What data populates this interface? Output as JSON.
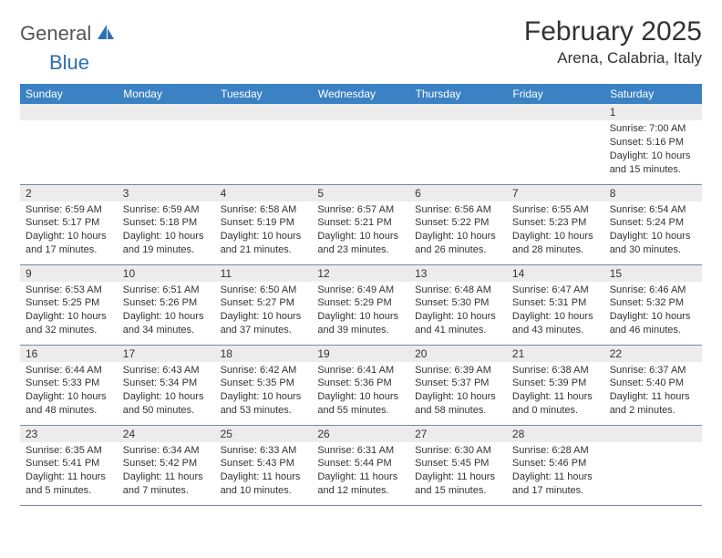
{
  "brand": {
    "general": "General",
    "blue": "Blue"
  },
  "title": "February 2025",
  "location": "Arena, Calabria, Italy",
  "colors": {
    "header_bg": "#3b82c4",
    "header_text": "#ffffff",
    "daynum_bg": "#ececec",
    "row_border": "#6a8db0",
    "text": "#333333",
    "logo_gray": "#555555",
    "logo_blue": "#2c6fb5"
  },
  "weekdays": [
    "Sunday",
    "Monday",
    "Tuesday",
    "Wednesday",
    "Thursday",
    "Friday",
    "Saturday"
  ],
  "weeks": [
    [
      {
        "n": "",
        "sr": "",
        "ss": "",
        "dl": ""
      },
      {
        "n": "",
        "sr": "",
        "ss": "",
        "dl": ""
      },
      {
        "n": "",
        "sr": "",
        "ss": "",
        "dl": ""
      },
      {
        "n": "",
        "sr": "",
        "ss": "",
        "dl": ""
      },
      {
        "n": "",
        "sr": "",
        "ss": "",
        "dl": ""
      },
      {
        "n": "",
        "sr": "",
        "ss": "",
        "dl": ""
      },
      {
        "n": "1",
        "sr": "Sunrise: 7:00 AM",
        "ss": "Sunset: 5:16 PM",
        "dl": "Daylight: 10 hours and 15 minutes."
      }
    ],
    [
      {
        "n": "2",
        "sr": "Sunrise: 6:59 AM",
        "ss": "Sunset: 5:17 PM",
        "dl": "Daylight: 10 hours and 17 minutes."
      },
      {
        "n": "3",
        "sr": "Sunrise: 6:59 AM",
        "ss": "Sunset: 5:18 PM",
        "dl": "Daylight: 10 hours and 19 minutes."
      },
      {
        "n": "4",
        "sr": "Sunrise: 6:58 AM",
        "ss": "Sunset: 5:19 PM",
        "dl": "Daylight: 10 hours and 21 minutes."
      },
      {
        "n": "5",
        "sr": "Sunrise: 6:57 AM",
        "ss": "Sunset: 5:21 PM",
        "dl": "Daylight: 10 hours and 23 minutes."
      },
      {
        "n": "6",
        "sr": "Sunrise: 6:56 AM",
        "ss": "Sunset: 5:22 PM",
        "dl": "Daylight: 10 hours and 26 minutes."
      },
      {
        "n": "7",
        "sr": "Sunrise: 6:55 AM",
        "ss": "Sunset: 5:23 PM",
        "dl": "Daylight: 10 hours and 28 minutes."
      },
      {
        "n": "8",
        "sr": "Sunrise: 6:54 AM",
        "ss": "Sunset: 5:24 PM",
        "dl": "Daylight: 10 hours and 30 minutes."
      }
    ],
    [
      {
        "n": "9",
        "sr": "Sunrise: 6:53 AM",
        "ss": "Sunset: 5:25 PM",
        "dl": "Daylight: 10 hours and 32 minutes."
      },
      {
        "n": "10",
        "sr": "Sunrise: 6:51 AM",
        "ss": "Sunset: 5:26 PM",
        "dl": "Daylight: 10 hours and 34 minutes."
      },
      {
        "n": "11",
        "sr": "Sunrise: 6:50 AM",
        "ss": "Sunset: 5:27 PM",
        "dl": "Daylight: 10 hours and 37 minutes."
      },
      {
        "n": "12",
        "sr": "Sunrise: 6:49 AM",
        "ss": "Sunset: 5:29 PM",
        "dl": "Daylight: 10 hours and 39 minutes."
      },
      {
        "n": "13",
        "sr": "Sunrise: 6:48 AM",
        "ss": "Sunset: 5:30 PM",
        "dl": "Daylight: 10 hours and 41 minutes."
      },
      {
        "n": "14",
        "sr": "Sunrise: 6:47 AM",
        "ss": "Sunset: 5:31 PM",
        "dl": "Daylight: 10 hours and 43 minutes."
      },
      {
        "n": "15",
        "sr": "Sunrise: 6:46 AM",
        "ss": "Sunset: 5:32 PM",
        "dl": "Daylight: 10 hours and 46 minutes."
      }
    ],
    [
      {
        "n": "16",
        "sr": "Sunrise: 6:44 AM",
        "ss": "Sunset: 5:33 PM",
        "dl": "Daylight: 10 hours and 48 minutes."
      },
      {
        "n": "17",
        "sr": "Sunrise: 6:43 AM",
        "ss": "Sunset: 5:34 PM",
        "dl": "Daylight: 10 hours and 50 minutes."
      },
      {
        "n": "18",
        "sr": "Sunrise: 6:42 AM",
        "ss": "Sunset: 5:35 PM",
        "dl": "Daylight: 10 hours and 53 minutes."
      },
      {
        "n": "19",
        "sr": "Sunrise: 6:41 AM",
        "ss": "Sunset: 5:36 PM",
        "dl": "Daylight: 10 hours and 55 minutes."
      },
      {
        "n": "20",
        "sr": "Sunrise: 6:39 AM",
        "ss": "Sunset: 5:37 PM",
        "dl": "Daylight: 10 hours and 58 minutes."
      },
      {
        "n": "21",
        "sr": "Sunrise: 6:38 AM",
        "ss": "Sunset: 5:39 PM",
        "dl": "Daylight: 11 hours and 0 minutes."
      },
      {
        "n": "22",
        "sr": "Sunrise: 6:37 AM",
        "ss": "Sunset: 5:40 PM",
        "dl": "Daylight: 11 hours and 2 minutes."
      }
    ],
    [
      {
        "n": "23",
        "sr": "Sunrise: 6:35 AM",
        "ss": "Sunset: 5:41 PM",
        "dl": "Daylight: 11 hours and 5 minutes."
      },
      {
        "n": "24",
        "sr": "Sunrise: 6:34 AM",
        "ss": "Sunset: 5:42 PM",
        "dl": "Daylight: 11 hours and 7 minutes."
      },
      {
        "n": "25",
        "sr": "Sunrise: 6:33 AM",
        "ss": "Sunset: 5:43 PM",
        "dl": "Daylight: 11 hours and 10 minutes."
      },
      {
        "n": "26",
        "sr": "Sunrise: 6:31 AM",
        "ss": "Sunset: 5:44 PM",
        "dl": "Daylight: 11 hours and 12 minutes."
      },
      {
        "n": "27",
        "sr": "Sunrise: 6:30 AM",
        "ss": "Sunset: 5:45 PM",
        "dl": "Daylight: 11 hours and 15 minutes."
      },
      {
        "n": "28",
        "sr": "Sunrise: 6:28 AM",
        "ss": "Sunset: 5:46 PM",
        "dl": "Daylight: 11 hours and 17 minutes."
      },
      {
        "n": "",
        "sr": "",
        "ss": "",
        "dl": ""
      }
    ]
  ]
}
